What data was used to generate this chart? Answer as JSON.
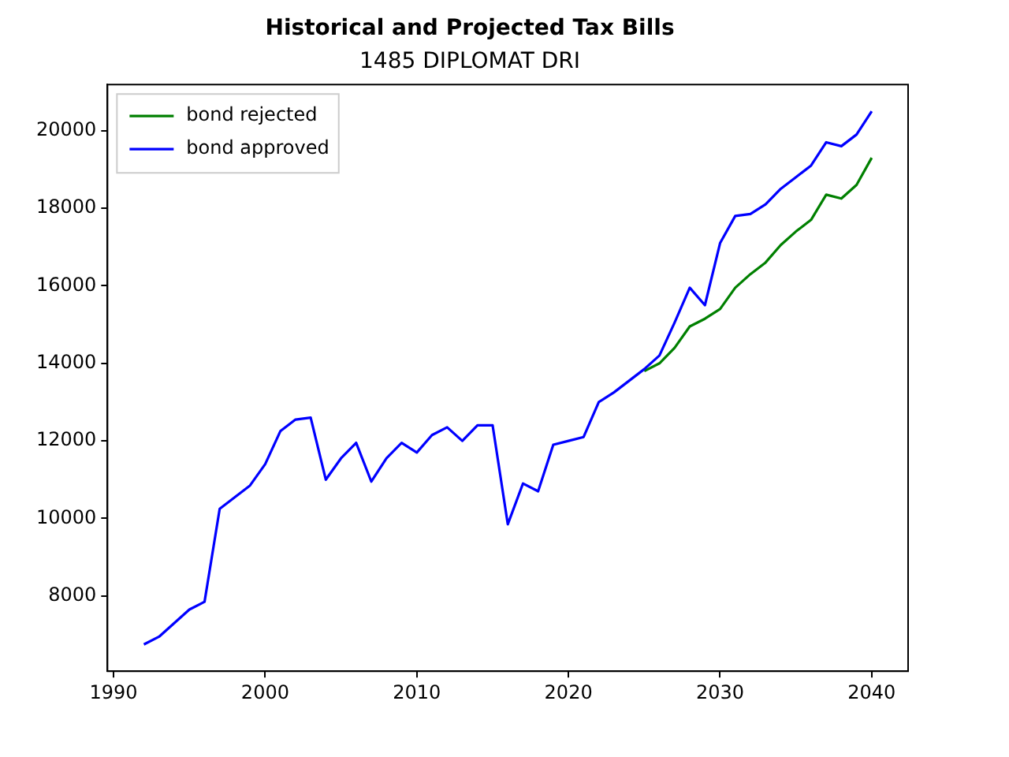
{
  "chart_data": {
    "type": "line",
    "title": "Historical and Projected Tax Bills",
    "subtitle": "1485 DIPLOMAT DRI",
    "x": [
      1992,
      1993,
      1994,
      1995,
      1996,
      1997,
      1998,
      1999,
      2000,
      2001,
      2002,
      2003,
      2004,
      2005,
      2006,
      2007,
      2008,
      2009,
      2010,
      2011,
      2012,
      2013,
      2014,
      2015,
      2016,
      2017,
      2018,
      2019,
      2020,
      2021,
      2022,
      2023,
      2024,
      2025,
      2026,
      2027,
      2028,
      2029,
      2030,
      2031,
      2032,
      2033,
      2034,
      2035,
      2036,
      2037,
      2038,
      2039,
      2040
    ],
    "series": [
      {
        "name": "bond rejected",
        "color": "#008000",
        "values": [
          null,
          null,
          null,
          null,
          null,
          null,
          null,
          null,
          null,
          null,
          null,
          null,
          null,
          null,
          null,
          null,
          null,
          null,
          null,
          null,
          null,
          null,
          null,
          null,
          null,
          null,
          null,
          null,
          null,
          null,
          null,
          null,
          null,
          13800,
          14000,
          14400,
          14950,
          15150,
          15400,
          15950,
          16300,
          16600,
          17050,
          17400,
          17700,
          18350,
          18250,
          18600,
          19300
        ]
      },
      {
        "name": "bond approved",
        "color": "#0000ff",
        "values": [
          6750,
          6950,
          7300,
          7650,
          7850,
          10250,
          10550,
          10850,
          11400,
          12250,
          12550,
          12600,
          11000,
          11550,
          11950,
          10950,
          11550,
          11950,
          11700,
          12150,
          12350,
          12000,
          12400,
          12400,
          9850,
          10900,
          10700,
          11900,
          12000,
          12100,
          13000,
          13250,
          13550,
          13850,
          14200,
          15050,
          15950,
          15500,
          17100,
          17800,
          17850,
          18100,
          18500,
          18800,
          19100,
          19700,
          19600,
          19900,
          20500
        ]
      }
    ],
    "xlim": [
      1989.6,
      2042.4
    ],
    "xticks": [
      1990,
      2000,
      2010,
      2020,
      2030,
      2040
    ],
    "ylim": [
      6060,
      21190
    ],
    "yticks": [
      8000,
      10000,
      12000,
      14000,
      16000,
      18000,
      20000
    ],
    "grid": false,
    "legend": "top left",
    "marker": "none",
    "line_style": "solid"
  }
}
